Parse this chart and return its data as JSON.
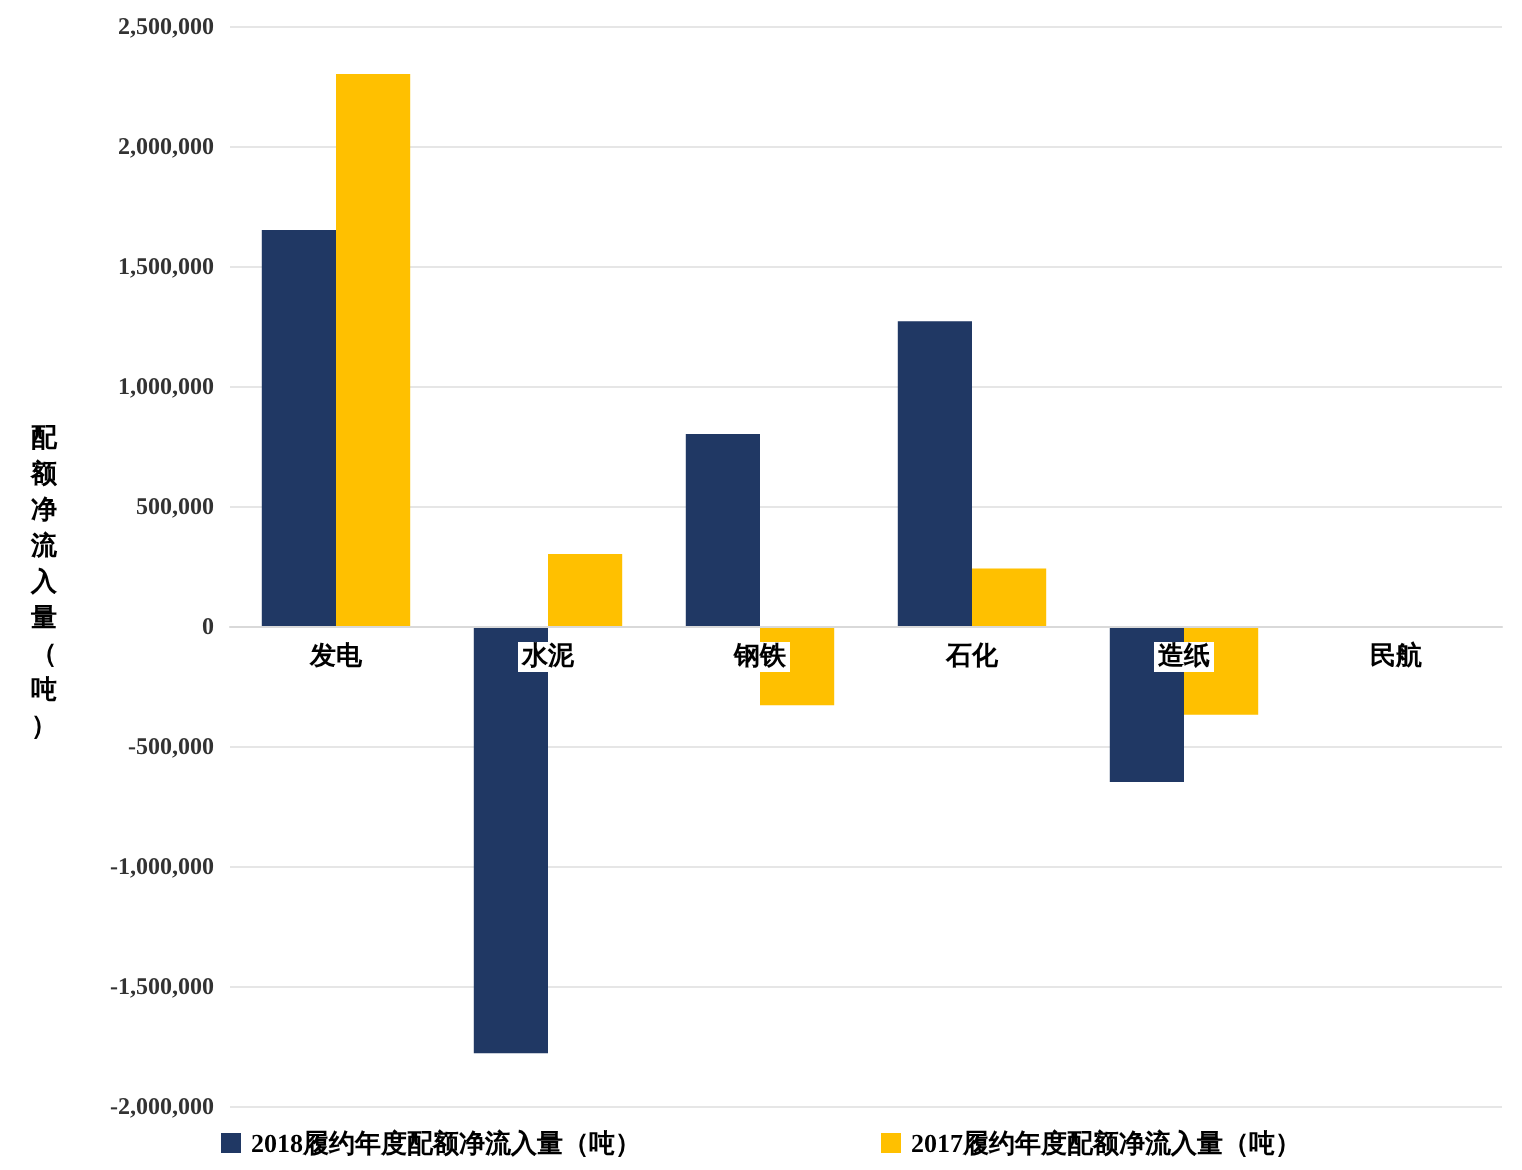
{
  "chart_data": {
    "type": "bar",
    "ylabel": "配额净流入量（吨）",
    "categories": [
      "发电",
      "水泥",
      "钢铁",
      "石化",
      "造纸",
      "民航"
    ],
    "series": [
      {
        "name": "2018履约年度配额净流入量（吨）",
        "color": "#203864",
        "values": [
          1650000,
          -1780000,
          800000,
          1270000,
          -650000,
          0
        ]
      },
      {
        "name": "2017履约年度配额净流入量（吨）",
        "color": "#ffc000",
        "values": [
          2300000,
          300000,
          -330000,
          240000,
          -370000,
          0
        ]
      }
    ],
    "ylim": [
      -2000000,
      2500000
    ],
    "yticks": [
      {
        "value": -2000000,
        "label": "-2,000,000"
      },
      {
        "value": -1500000,
        "label": "-1,500,000"
      },
      {
        "value": -1000000,
        "label": "-1,000,000"
      },
      {
        "value": -500000,
        "label": "-500,000"
      },
      0,
      {
        "value": 500000,
        "label": "500,000"
      },
      {
        "value": 1000000,
        "label": "1,000,000"
      },
      {
        "value": 1500000,
        "label": "1,500,000"
      },
      {
        "value": 2000000,
        "label": "2,000,000"
      },
      {
        "value": 2500000,
        "label": "2,500,000"
      }
    ],
    "grid": "y",
    "legend": "bottom"
  }
}
